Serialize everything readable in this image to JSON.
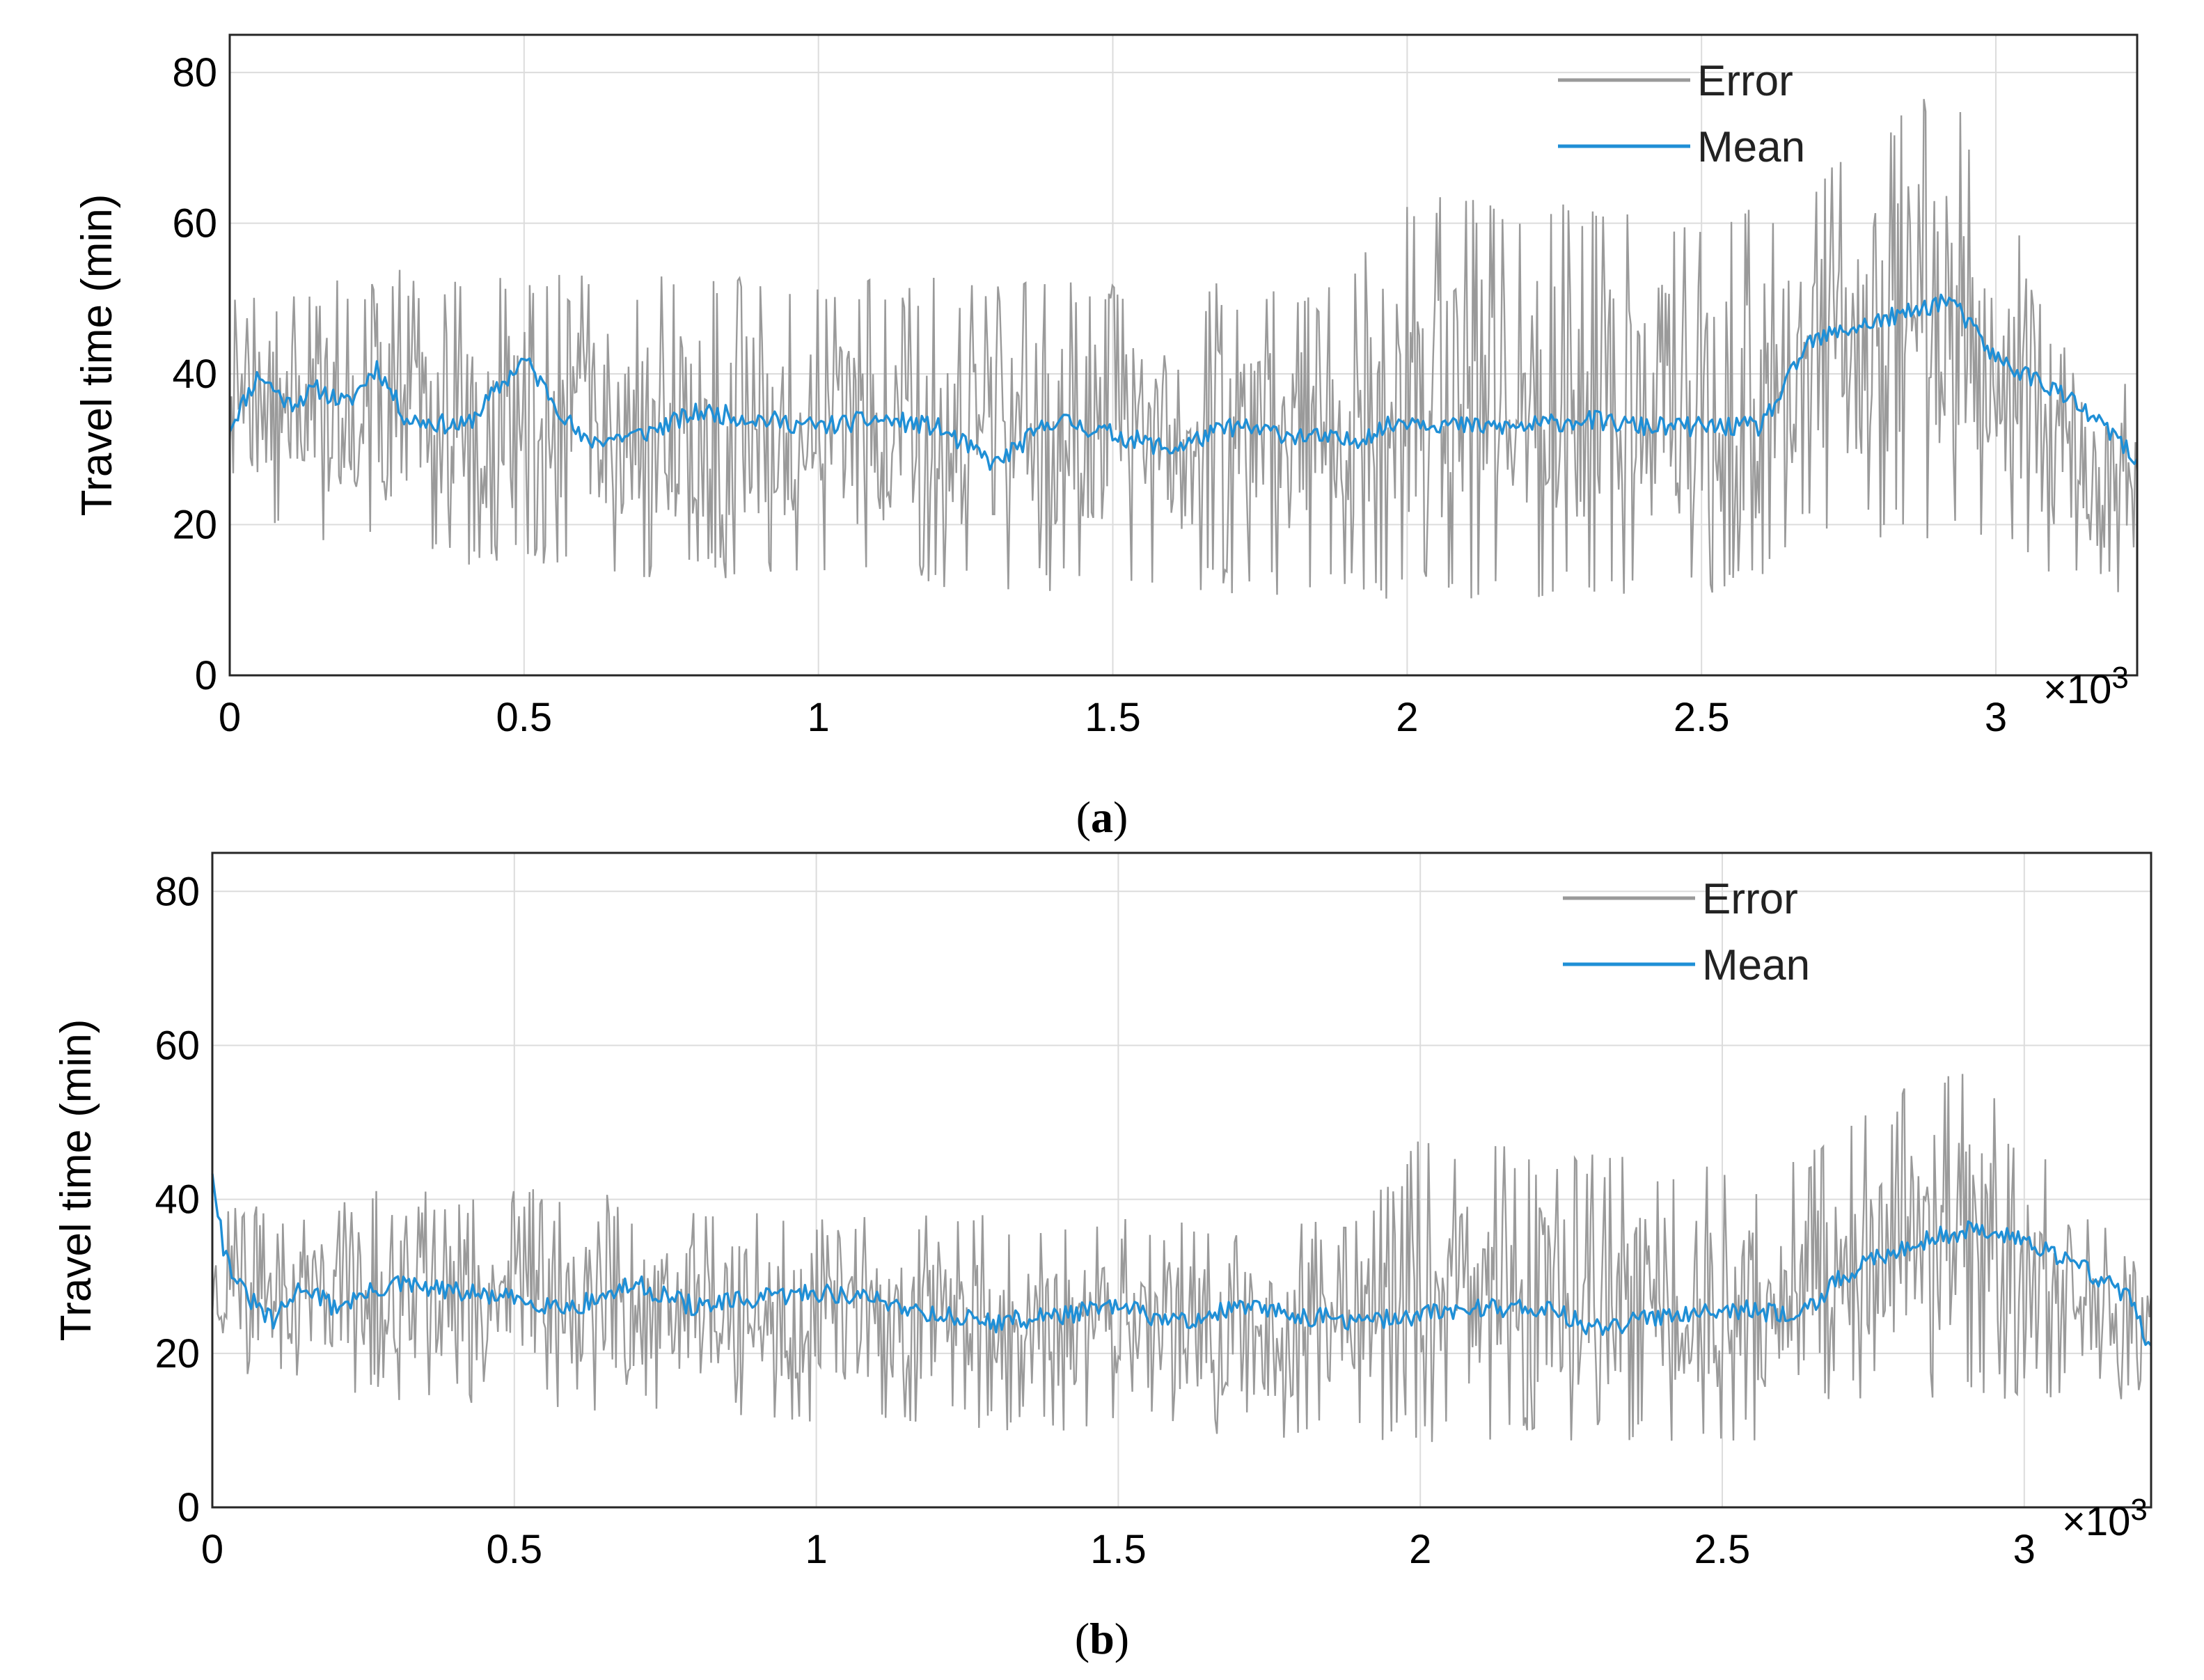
{
  "chart_data": [
    {
      "panel": "a",
      "type": "line",
      "caption_open": "(",
      "caption_letter": "a",
      "caption_close": ")",
      "ylabel": "Travel time (min)",
      "xlabel": "",
      "x_multiplier": "×10",
      "x_multiplier_exp": "3",
      "xlim": [
        0,
        3.24
      ],
      "ylim": [
        0,
        85
      ],
      "xticks": [
        0,
        0.5,
        1,
        1.5,
        2,
        2.5,
        3
      ],
      "xtick_labels": [
        "0",
        "0.5",
        "1",
        "1.5",
        "2",
        "2.5",
        "3"
      ],
      "yticks": [
        0,
        20,
        40,
        60,
        80
      ],
      "ytick_labels": [
        "0",
        "20",
        "40",
        "60",
        "80"
      ],
      "grid": true,
      "legend_position": "top-right",
      "series": [
        {
          "name": "Error",
          "color": "#9a9a9a",
          "style": "noisy",
          "seed": 7,
          "envelope": [
            {
              "x": 0,
              "low": 20,
              "high": 50
            },
            {
              "x": 0.3,
              "low": 14,
              "high": 54
            },
            {
              "x": 1.0,
              "low": 12,
              "high": 53
            },
            {
              "x": 1.9,
              "low": 10,
              "high": 52
            },
            {
              "x": 1.95,
              "low": 10,
              "high": 64
            },
            {
              "x": 2.6,
              "low": 10,
              "high": 62
            },
            {
              "x": 2.66,
              "low": 18,
              "high": 65
            },
            {
              "x": 2.9,
              "low": 18,
              "high": 80
            },
            {
              "x": 3.0,
              "low": 18,
              "high": 68
            },
            {
              "x": 3.1,
              "low": 12,
              "high": 44
            },
            {
              "x": 3.24,
              "low": 9,
              "high": 40
            }
          ]
        },
        {
          "name": "Mean",
          "color": "#1f8fd6",
          "style": "smooth",
          "seed": 11,
          "x": [
            0,
            0.05,
            0.1,
            0.15,
            0.2,
            0.25,
            0.3,
            0.4,
            0.5,
            0.6,
            0.7,
            0.8,
            0.9,
            1.0,
            1.1,
            1.2,
            1.3,
            1.4,
            1.5,
            1.6,
            1.7,
            1.8,
            1.9,
            2.0,
            2.1,
            2.2,
            2.3,
            2.4,
            2.5,
            2.6,
            2.64,
            2.68,
            2.75,
            2.85,
            2.92,
            3.0,
            3.1,
            3.2,
            3.24
          ],
          "y": [
            33,
            40,
            36,
            38,
            36,
            41,
            34,
            33,
            42,
            31,
            32,
            35,
            34,
            33,
            34,
            33,
            28,
            34,
            32,
            30,
            33,
            32,
            31,
            34,
            33,
            33,
            34,
            33,
            33,
            33,
            38,
            44,
            46,
            48,
            50,
            42,
            38,
            32,
            28
          ]
        }
      ]
    },
    {
      "panel": "b",
      "type": "line",
      "caption_open": "(",
      "caption_letter": "b",
      "caption_close": ")",
      "ylabel": "Travel time (min)",
      "xlabel": "",
      "x_multiplier": "×10",
      "x_multiplier_exp": "3",
      "xlim": [
        0,
        3.21
      ],
      "ylim": [
        0,
        85
      ],
      "xticks": [
        0,
        0.5,
        1,
        1.5,
        2,
        2.5,
        3
      ],
      "xtick_labels": [
        "0",
        "0.5",
        "1",
        "1.5",
        "2",
        "2.5",
        "3"
      ],
      "yticks": [
        0,
        20,
        40,
        60,
        80
      ],
      "ytick_labels": [
        "0",
        "20",
        "40",
        "60",
        "80"
      ],
      "grid": true,
      "legend_position": "top-right",
      "series": [
        {
          "name": "Error",
          "color": "#9a9a9a",
          "style": "noisy",
          "seed": 23,
          "envelope": [
            {
              "x": 0,
              "low": 17,
              "high": 40
            },
            {
              "x": 0.4,
              "low": 13,
              "high": 42
            },
            {
              "x": 1.2,
              "low": 10,
              "high": 38
            },
            {
              "x": 1.9,
              "low": 8,
              "high": 38
            },
            {
              "x": 2.0,
              "low": 8,
              "high": 48
            },
            {
              "x": 2.6,
              "low": 8,
              "high": 44
            },
            {
              "x": 2.68,
              "low": 14,
              "high": 48
            },
            {
              "x": 2.9,
              "low": 14,
              "high": 60
            },
            {
              "x": 3.0,
              "low": 14,
              "high": 48
            },
            {
              "x": 3.21,
              "low": 14,
              "high": 32
            }
          ]
        },
        {
          "name": "Mean",
          "color": "#1f8fd6",
          "style": "smooth",
          "seed": 31,
          "x": [
            0,
            0.02,
            0.05,
            0.1,
            0.15,
            0.2,
            0.3,
            0.4,
            0.5,
            0.6,
            0.7,
            0.8,
            0.9,
            1.0,
            1.1,
            1.2,
            1.3,
            1.4,
            1.5,
            1.6,
            1.7,
            1.8,
            1.9,
            2.0,
            2.1,
            2.2,
            2.3,
            2.4,
            2.5,
            2.6,
            2.66,
            2.7,
            2.8,
            2.9,
            3.0,
            3.1,
            3.18,
            3.21
          ],
          "y": [
            44,
            33,
            28,
            24,
            29,
            26,
            29,
            28,
            27,
            26,
            29,
            26,
            27,
            28,
            27,
            25,
            24,
            25,
            26,
            24,
            26,
            25,
            24,
            25,
            26,
            26,
            23,
            25,
            26,
            25,
            27,
            30,
            34,
            36,
            35,
            31,
            27,
            20
          ]
        }
      ]
    }
  ]
}
